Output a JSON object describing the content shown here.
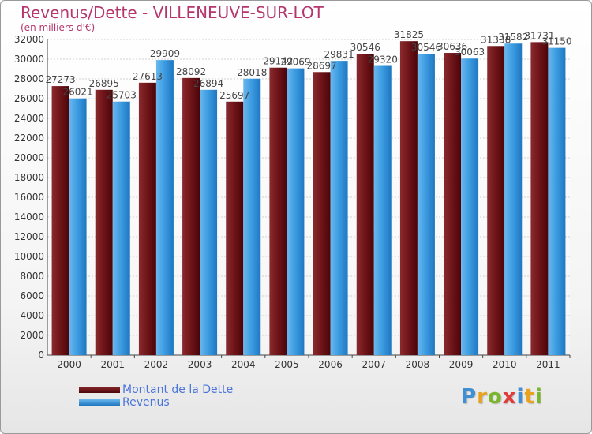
{
  "header": {
    "title": "Revenus/Dette - VILLENEUVE-SUR-LOT",
    "subtitle": "(en milliers d'€)"
  },
  "colors": {
    "series_dette": "#6e1418",
    "series_revenus": "#3a9ae0",
    "title": "#b5366d",
    "legend_text": "#4a74d9"
  },
  "chart_data": {
    "type": "bar",
    "title": "Revenus/Dette - VILLENEUVE-SUR-LOT",
    "subtitle": "(en milliers d'€)",
    "categories": [
      "2000",
      "2001",
      "2002",
      "2003",
      "2004",
      "2005",
      "2006",
      "2007",
      "2008",
      "2009",
      "2010",
      "2011"
    ],
    "series": [
      {
        "name": "Montant de la Dette",
        "values": [
          27273,
          26895,
          27613,
          28092,
          25697,
          29142,
          28697,
          30546,
          31825,
          30636,
          31338,
          31731
        ]
      },
      {
        "name": "Revenus",
        "values": [
          26021,
          25703,
          29909,
          26894,
          28018,
          29069,
          29831,
          29320,
          30546,
          30063,
          31582,
          31150
        ]
      }
    ],
    "ylim": [
      0,
      32000
    ],
    "yticks": [
      0,
      2000,
      4000,
      6000,
      8000,
      10000,
      12000,
      14000,
      16000,
      18000,
      20000,
      22000,
      24000,
      26000,
      28000,
      30000,
      32000
    ],
    "grid": true,
    "legend_position": "bottom-left"
  },
  "legend": {
    "items": [
      {
        "label": "Montant de la Dette"
      },
      {
        "label": "Revenus"
      }
    ]
  },
  "logo": {
    "letters": [
      {
        "char": "P",
        "color": "#3f8fd2"
      },
      {
        "char": "r",
        "color": "#e8a21e"
      },
      {
        "char": "o",
        "color": "#7ab52c"
      },
      {
        "char": "x",
        "color": "#e23b3b"
      },
      {
        "char": "i",
        "color": "#3f8fd2"
      },
      {
        "char": "t",
        "color": "#e8a21e"
      },
      {
        "char": "i",
        "color": "#7ab52c"
      }
    ]
  }
}
